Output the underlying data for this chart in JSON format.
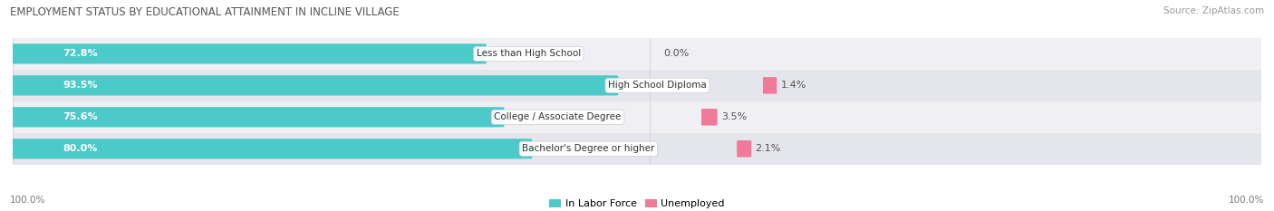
{
  "title": "EMPLOYMENT STATUS BY EDUCATIONAL ATTAINMENT IN INCLINE VILLAGE",
  "source": "Source: ZipAtlas.com",
  "categories": [
    "Less than High School",
    "High School Diploma",
    "College / Associate Degree",
    "Bachelor's Degree or higher"
  ],
  "labor_force": [
    72.8,
    93.5,
    75.6,
    80.0
  ],
  "unemployed": [
    0.0,
    1.4,
    3.5,
    2.1
  ],
  "labor_force_color": "#4CC9C9",
  "unemployed_color": "#F07A9A",
  "row_bg_colors": [
    "#EFEFF4",
    "#E5E5EC"
  ],
  "label_bg_color": "#FFFFFF",
  "title_fontsize": 8.5,
  "source_fontsize": 7.5,
  "bar_label_fontsize": 8,
  "category_fontsize": 7.5,
  "legend_fontsize": 8,
  "axis_label_fontsize": 7.5,
  "left_axis_label": "100.0%",
  "right_axis_label": "100.0%",
  "background_color": "#FFFFFF"
}
